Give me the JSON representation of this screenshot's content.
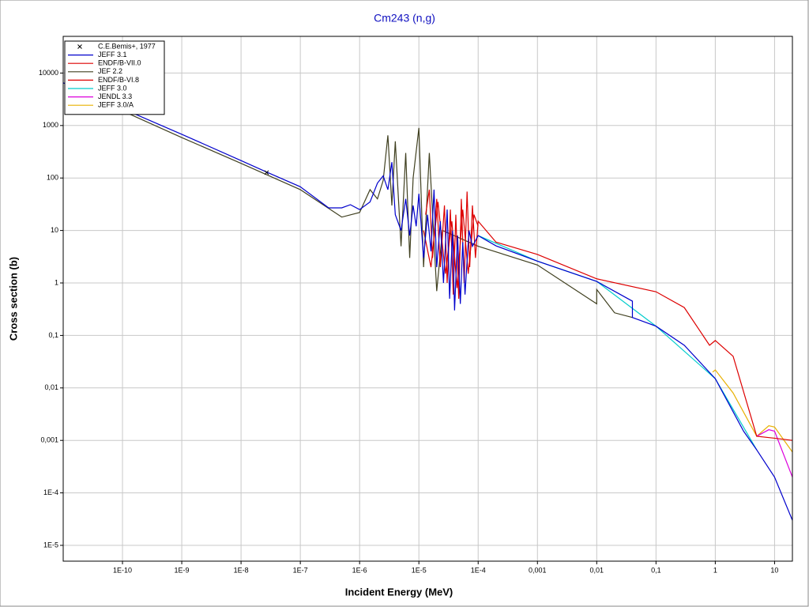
{
  "chart_data": {
    "type": "line",
    "title": "Cm243 (n,g)",
    "x_label": "Incident Energy (MeV)",
    "y_label": "Cross section (b)",
    "x_log": true,
    "y_log": true,
    "grid": true,
    "legend": "upper left",
    "xlim": [
      1e-11,
      20
    ],
    "ylim": [
      5e-06,
      50000
    ],
    "xticks": [
      {
        "value": 1e-10,
        "label": "1E-10"
      },
      {
        "value": 1e-09,
        "label": "1E-9"
      },
      {
        "value": 1e-08,
        "label": "1E-8"
      },
      {
        "value": 1e-07,
        "label": "1E-7"
      },
      {
        "value": 1e-06,
        "label": "1E-6"
      },
      {
        "value": 1e-05,
        "label": "1E-5"
      },
      {
        "value": 0.0001,
        "label": "1E-4"
      },
      {
        "value": 0.001,
        "label": "0,001"
      },
      {
        "value": 0.01,
        "label": "0,01"
      },
      {
        "value": 0.1,
        "label": "0,1"
      },
      1,
      10
    ],
    "yticks": [
      {
        "value": 1e-05,
        "label": "1E-5"
      },
      {
        "value": 0.0001,
        "label": "1E-4"
      },
      {
        "value": 0.001,
        "label": "0,001"
      },
      {
        "value": 0.01,
        "label": "0,01"
      },
      {
        "value": 0.1,
        "label": "0,1"
      },
      1,
      10,
      100,
      1000,
      10000
    ],
    "series": [
      {
        "name": "C.E.Bemis+, 1977",
        "type": "scatter",
        "color": "#000000",
        "x": [
          2.7e-08
        ],
        "values": [
          127
        ]
      },
      {
        "name": "JEFF 3.1",
        "color": "#0000cc",
        "x": [
          1e-11,
          1e-10,
          1e-09,
          1e-08,
          2.7e-08,
          1e-07,
          3e-07,
          5e-07,
          7e-07,
          1e-06,
          1.5e-06,
          2e-06,
          2.5e-06,
          3e-06,
          3.5e-06,
          4e-06,
          5e-06,
          6e-06,
          7e-06,
          8e-06,
          9e-06,
          1e-05,
          1.2e-05,
          1.4e-05,
          1.6e-05,
          1.8e-05,
          2e-05,
          2.3e-05,
          2.6e-05,
          3e-05,
          3.3e-05,
          3.7e-05,
          4e-05,
          4.5e-05,
          5e-05,
          5.5e-05,
          6e-05,
          7e-05,
          8e-05,
          0.0001,
          0.0002,
          0.001,
          0.01,
          0.04,
          0.04,
          0.1,
          0.3,
          1,
          3,
          5,
          10,
          20
        ],
        "values": [
          6500,
          2100,
          680,
          215,
          130,
          68,
          27,
          27,
          31,
          25,
          35,
          80,
          110,
          60,
          200,
          20,
          10,
          40,
          8,
          30,
          12,
          50,
          3,
          20,
          4,
          60,
          2,
          15,
          1,
          25,
          0.5,
          10,
          0.3,
          8,
          0.4,
          6,
          0.6,
          10,
          5,
          8,
          5.1,
          2.6,
          1.07,
          0.45,
          0.22,
          0.15,
          0.065,
          0.015,
          0.0015,
          0.00066,
          0.0002,
          3e-05
        ]
      },
      {
        "name": "ENDF/B-VII.0",
        "color": "#dd0000",
        "x": [
          1.3e-05,
          1.5e-05,
          1.7e-05,
          2e-05,
          2.3e-05,
          2.7e-05,
          3e-05,
          3.4e-05,
          3.8e-05,
          4.2e-05,
          4.7e-05,
          5.2e-05,
          5.8e-05,
          6.5e-05,
          7.2e-05,
          8e-05,
          9e-05,
          0.0001,
          0.0002,
          0.001,
          0.01,
          0.1,
          0.3,
          0.8,
          1,
          2,
          5,
          10,
          20
        ],
        "values": [
          20,
          60,
          3,
          40,
          2,
          30,
          1,
          25,
          0.6,
          20,
          0.5,
          40,
          1,
          55,
          2,
          30,
          3,
          15,
          6,
          3.5,
          1.2,
          0.68,
          0.34,
          0.065,
          0.08,
          0.04,
          0.0012,
          0.0011,
          0.001
        ]
      },
      {
        "name": "JEF 2.2",
        "color": "#404020",
        "x": [
          1e-10,
          1e-09,
          1e-08,
          1e-07,
          5e-07,
          1e-06,
          1.5e-06,
          2e-06,
          2.5e-06,
          3e-06,
          3.5e-06,
          4e-06,
          5e-06,
          6e-06,
          7e-06,
          8e-06,
          1e-05,
          1.2e-05,
          1.5e-05,
          2e-05,
          2.5e-05,
          0.0001,
          0.001,
          0.01,
          0.01,
          0.02,
          0.04
        ],
        "values": [
          1900,
          590,
          190,
          60,
          18,
          22,
          60,
          40,
          90,
          650,
          30,
          500,
          5,
          300,
          3,
          100,
          900,
          2,
          300,
          0.7,
          10,
          5,
          2.2,
          0.4,
          0.75,
          0.27,
          0.22
        ]
      },
      {
        "name": "ENDF/B-VI.8",
        "color": "#dd0000",
        "x": [
          1.2e-05,
          1.6e-05,
          2.1e-05,
          2.8e-05,
          3.6e-05,
          4.4e-05,
          5.5e-05,
          6.8e-05,
          8.5e-05,
          0.0001
        ],
        "values": [
          10,
          2,
          35,
          1.5,
          15,
          0.8,
          25,
          1.5,
          20,
          12
        ]
      },
      {
        "name": "JEFF 3.0",
        "color": "#00cccc",
        "x": [
          0.0001,
          0.001,
          0.01,
          0.1,
          1,
          5
        ],
        "values": [
          8,
          2.6,
          1.07,
          0.15,
          0.015,
          0.00066
        ]
      },
      {
        "name": "JENDL 3.3",
        "color": "#dd00dd",
        "x": [
          5,
          8,
          10,
          20
        ],
        "values": [
          0.0012,
          0.0016,
          0.0015,
          0.0002
        ]
      },
      {
        "name": "JEFF 3.0/A",
        "color": "#e8b000",
        "x": [
          0.9,
          1,
          2,
          5,
          8,
          10,
          20
        ],
        "values": [
          0.02,
          0.022,
          0.008,
          0.0012,
          0.0019,
          0.0018,
          0.0006
        ]
      }
    ]
  }
}
